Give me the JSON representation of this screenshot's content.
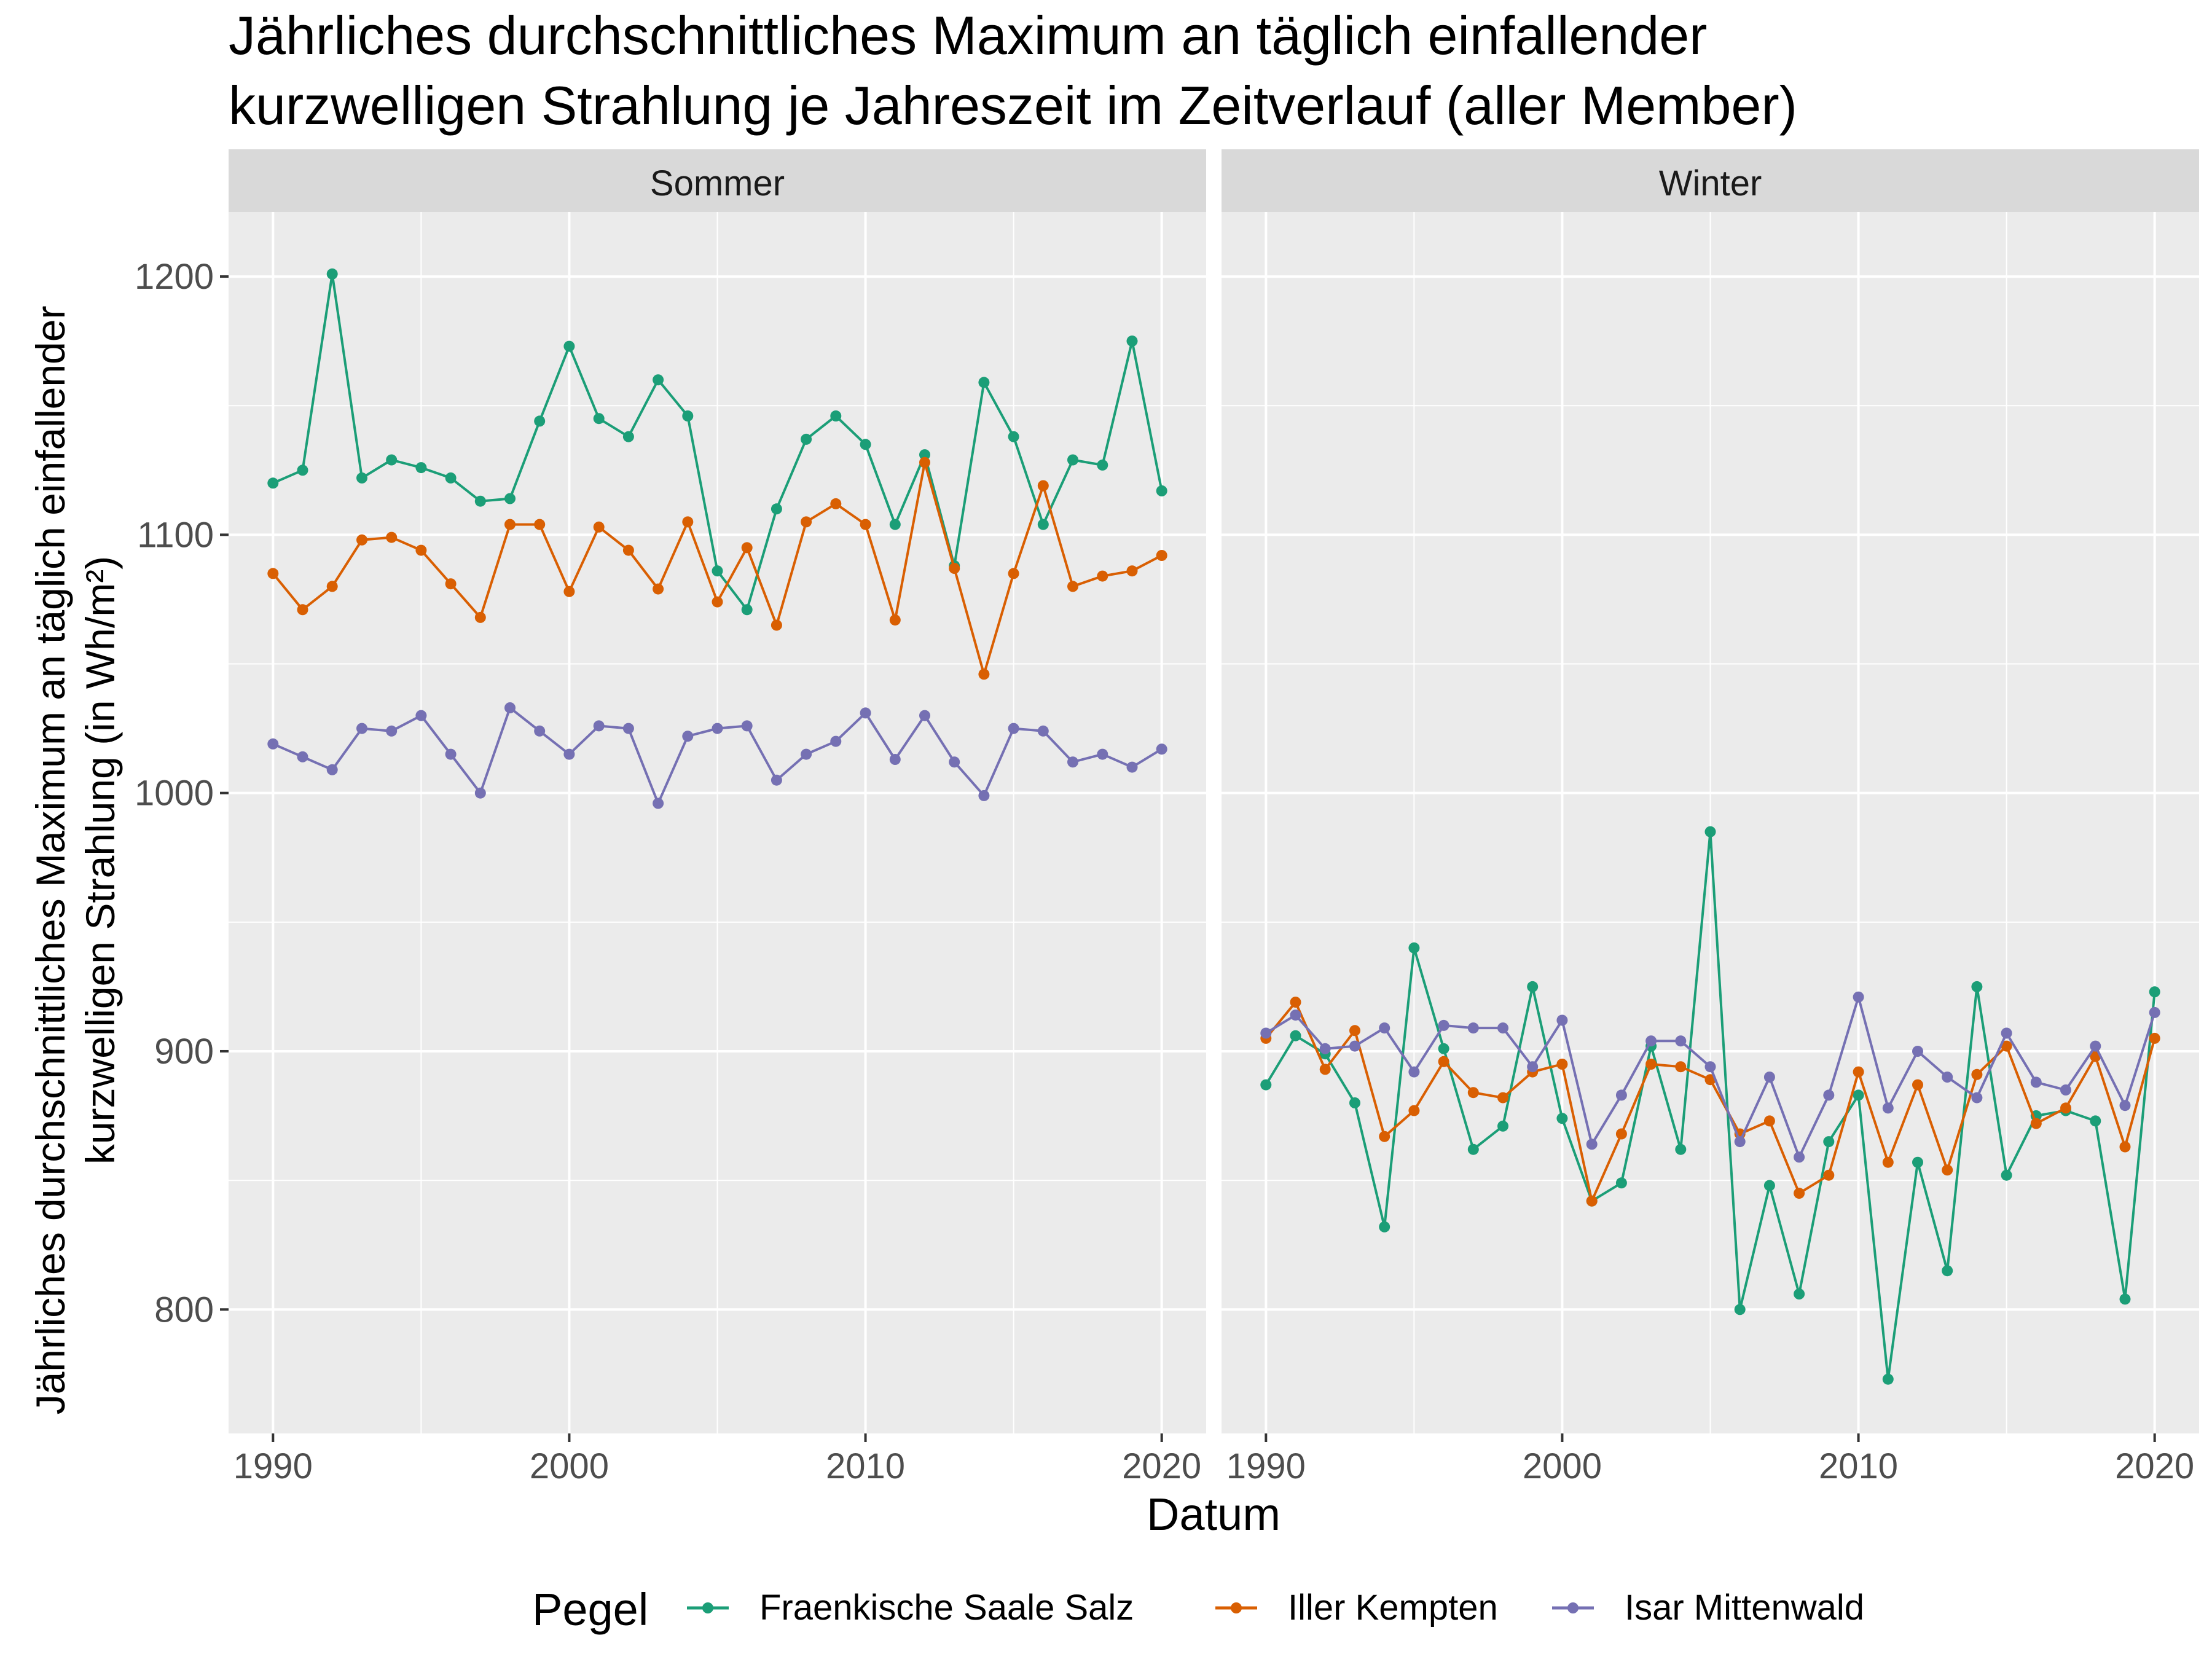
{
  "chart_data": {
    "type": "line",
    "title_lines": [
      "Jährliches durchschnittliches Maximum an täglich einfallender",
      "kurzwelligen Strahlung je Jahreszeit im Zeitverlauf (aller Member)"
    ],
    "xlabel": "Datum",
    "ylabel_lines": [
      "Jährliches durchschnittliches Maximum an täglich einfallender",
      "kurzwelligen Strahlung (in Wh/m²)"
    ],
    "xlim": [
      1988.5,
      2021.5
    ],
    "ylim": [
      752,
      1225
    ],
    "x_ticks": [
      1990,
      2000,
      2010,
      2020
    ],
    "y_ticks": [
      800,
      900,
      1000,
      1100,
      1200
    ],
    "grid": true,
    "legend": {
      "title": "Pegel",
      "position": "bottom"
    },
    "x": [
      1990,
      1991,
      1992,
      1993,
      1994,
      1995,
      1996,
      1997,
      1998,
      1999,
      2000,
      2001,
      2002,
      2003,
      2004,
      2005,
      2006,
      2007,
      2008,
      2009,
      2010,
      2011,
      2012,
      2013,
      2014,
      2015,
      2016,
      2017,
      2018,
      2019,
      2020
    ],
    "series_colors": [
      "#1b9e77",
      "#d95f02",
      "#7570b3"
    ],
    "series_names": [
      "Fraenkische Saale Salz",
      "Iller Kempten",
      "Isar Mittenwald"
    ],
    "panels": [
      {
        "name": "Sommer",
        "series": [
          {
            "name": "Fraenkische Saale Salz",
            "color": "#1b9e77",
            "values": [
              1120,
              1125,
              1201,
              1122,
              1129,
              1126,
              1122,
              1113,
              1114,
              1144,
              1173,
              1145,
              1138,
              1160,
              1146,
              1086,
              1071,
              1110,
              1137,
              1146,
              1135,
              1104,
              1131,
              1088,
              1159,
              1138,
              1104,
              1129,
              1127,
              1175,
              1117
            ]
          },
          {
            "name": "Iller Kempten",
            "color": "#d95f02",
            "values": [
              1085,
              1071,
              1080,
              1098,
              1099,
              1094,
              1081,
              1068,
              1104,
              1104,
              1078,
              1103,
              1094,
              1079,
              1105,
              1074,
              1095,
              1065,
              1105,
              1112,
              1104,
              1067,
              1128,
              1087,
              1046,
              1085,
              1119,
              1080,
              1084,
              1086,
              1092
            ]
          },
          {
            "name": "Isar Mittenwald",
            "color": "#7570b3",
            "values": [
              1019,
              1014,
              1009,
              1025,
              1024,
              1030,
              1015,
              1000,
              1033,
              1024,
              1015,
              1026,
              1025,
              996,
              1022,
              1025,
              1026,
              1005,
              1015,
              1020,
              1031,
              1013,
              1030,
              1012,
              999,
              1025,
              1024,
              1012,
              1015,
              1010,
              1017
            ]
          }
        ]
      },
      {
        "name": "Winter",
        "series": [
          {
            "name": "Fraenkische Saale Salz",
            "color": "#1b9e77",
            "values": [
              887,
              906,
              899,
              880,
              832,
              940,
              901,
              862,
              871,
              925,
              874,
              842,
              849,
              902,
              862,
              985,
              800,
              848,
              806,
              865,
              883,
              773,
              857,
              815,
              925,
              852,
              875,
              877,
              873,
              804,
              923
            ]
          },
          {
            "name": "Iller Kempten",
            "color": "#d95f02",
            "values": [
              905,
              919,
              893,
              908,
              867,
              877,
              896,
              884,
              882,
              892,
              895,
              842,
              868,
              895,
              894,
              889,
              868,
              873,
              845,
              852,
              892,
              857,
              887,
              854,
              891,
              902,
              872,
              878,
              898,
              863,
              905
            ]
          },
          {
            "name": "Isar Mittenwald",
            "color": "#7570b3",
            "values": [
              907,
              914,
              901,
              902,
              909,
              892,
              910,
              909,
              909,
              894,
              912,
              864,
              883,
              904,
              904,
              894,
              865,
              890,
              859,
              883,
              921,
              878,
              900,
              890,
              882,
              907,
              888,
              885,
              902,
              879,
              915
            ]
          }
        ]
      }
    ]
  }
}
